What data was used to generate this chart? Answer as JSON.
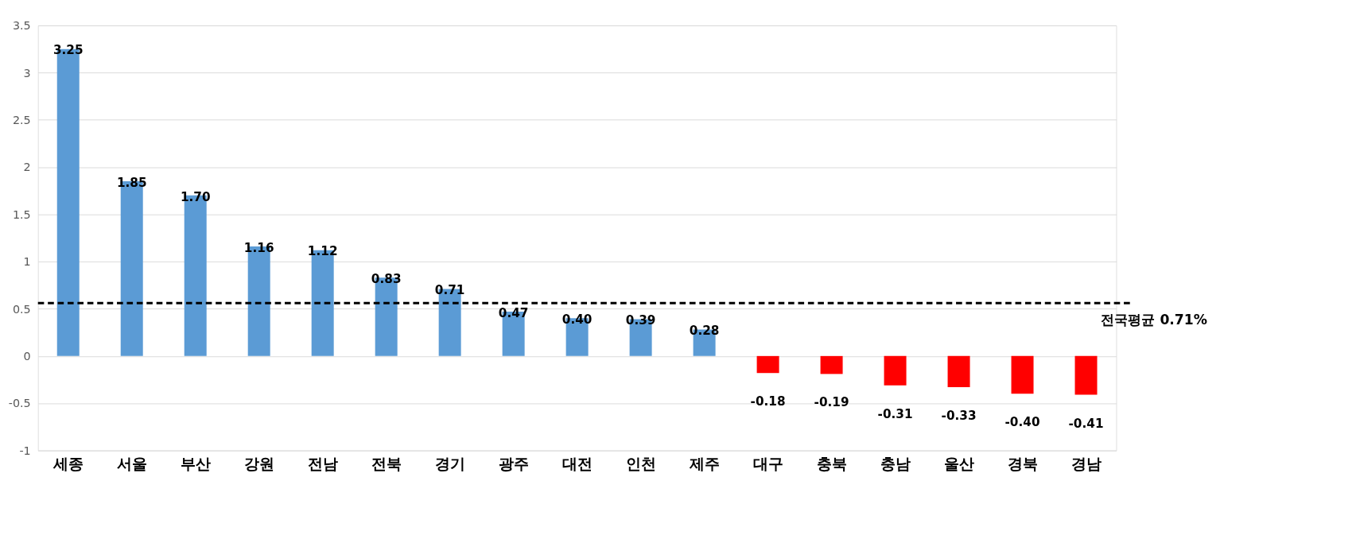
{
  "chart_data": {
    "type": "bar",
    "categories": [
      "세종",
      "서울",
      "부산",
      "강원",
      "전남",
      "전북",
      "경기",
      "광주",
      "대전",
      "인천",
      "제주",
      "대구",
      "충북",
      "충남",
      "울산",
      "경북",
      "경남"
    ],
    "values": [
      3.25,
      1.85,
      1.7,
      1.16,
      1.12,
      0.83,
      0.71,
      0.47,
      0.4,
      0.39,
      0.28,
      -0.18,
      -0.19,
      -0.31,
      -0.33,
      -0.4,
      -0.41
    ],
    "colors": [
      "#5b9bd5",
      "#5b9bd5",
      "#5b9bd5",
      "#5b9bd5",
      "#5b9bd5",
      "#5b9bd5",
      "#5b9bd5",
      "#5b9bd5",
      "#5b9bd5",
      "#5b9bd5",
      "#5b9bd5",
      "#ff0000",
      "#ff0000",
      "#ff0000",
      "#ff0000",
      "#ff0000",
      "#ff0000"
    ],
    "ylim": [
      -1,
      3.5
    ],
    "yticks": [
      -1,
      -0.5,
      0,
      0.5,
      1,
      1.5,
      2,
      2.5,
      3,
      3.5
    ],
    "value_labels": [
      "3.25",
      "1.85",
      "1.70",
      "1.16",
      "1.12",
      "0.83",
      "0.71",
      "0.47",
      "0.40",
      "0.39",
      "0.28",
      "-0.18",
      "-0.19",
      "-0.31",
      "-0.33",
      "-0.40",
      "-0.41"
    ],
    "grid": "y",
    "ref_lines": [
      {
        "axis": "y",
        "value": 0.56,
        "label": "전국평균 0.71%",
        "color": "#000000",
        "line_style": "dashed"
      }
    ]
  }
}
